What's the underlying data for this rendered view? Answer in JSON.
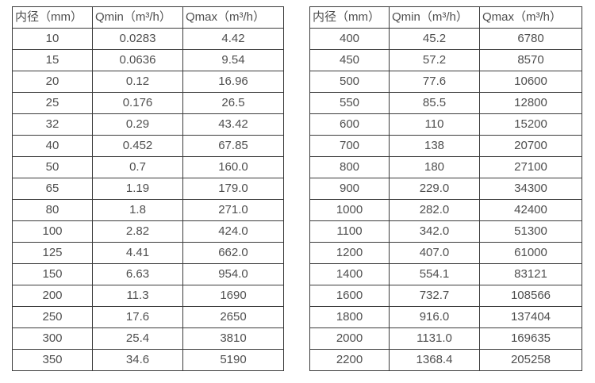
{
  "colors": {
    "border": "#3b3b3b",
    "text": "#4f4f4f",
    "background": "#ffffff"
  },
  "tables": [
    {
      "name": "flow-table-small-diameters",
      "headers": [
        "内径（mm）",
        "Qmin（m³/h）",
        "Qmax（m³/h）"
      ],
      "rows": [
        [
          "10",
          "0.0283",
          "4.42"
        ],
        [
          "15",
          "0.0636",
          "9.54"
        ],
        [
          "20",
          "0.12",
          "16.96"
        ],
        [
          "25",
          "0.176",
          "26.5"
        ],
        [
          "32",
          "0.29",
          "43.42"
        ],
        [
          "40",
          "0.452",
          "67.85"
        ],
        [
          "50",
          "0.7",
          "160.0"
        ],
        [
          "65",
          "1.19",
          "179.0"
        ],
        [
          "80",
          "1.8",
          "271.0"
        ],
        [
          "100",
          "2.82",
          "424.0"
        ],
        [
          "125",
          "4.41",
          "662.0"
        ],
        [
          "150",
          "6.63",
          "954.0"
        ],
        [
          "200",
          "11.3",
          "1690"
        ],
        [
          "250",
          "17.6",
          "2650"
        ],
        [
          "300",
          "25.4",
          "3810"
        ],
        [
          "350",
          "34.6",
          "5190"
        ]
      ]
    },
    {
      "name": "flow-table-large-diameters",
      "headers": [
        "内径（mm）",
        "Qmin（m³/h）",
        "Qmax（m³/h）"
      ],
      "rows": [
        [
          "400",
          "45.2",
          "6780"
        ],
        [
          "450",
          "57.2",
          "8570"
        ],
        [
          "500",
          "77.6",
          "10600"
        ],
        [
          "550",
          "85.5",
          "12800"
        ],
        [
          "600",
          "110",
          "15200"
        ],
        [
          "700",
          "138",
          "20700"
        ],
        [
          "800",
          "180",
          "27100"
        ],
        [
          "900",
          "229.0",
          "34300"
        ],
        [
          "1000",
          "282.0",
          "42400"
        ],
        [
          "1100",
          "342.0",
          "51300"
        ],
        [
          "1200",
          "407.0",
          "61000"
        ],
        [
          "1400",
          "554.1",
          "83121"
        ],
        [
          "1600",
          "732.7",
          "108566"
        ],
        [
          "1800",
          "916.0",
          "137404"
        ],
        [
          "2000",
          "1131.0",
          "169635"
        ],
        [
          "2200",
          "1368.4",
          "205258"
        ]
      ]
    }
  ]
}
